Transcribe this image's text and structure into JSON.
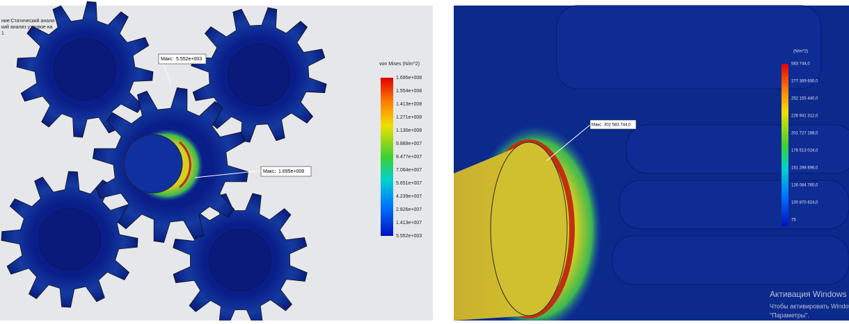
{
  "left_view": {
    "header_lines": [
      "ние:Статический анали",
      "кий анализ узловое на",
      "1"
    ],
    "legend": {
      "title": "von Mises (N/m^2)",
      "labels": [
        "1.695e+008",
        "1.554e+008",
        "1.413e+008",
        "1.271e+008",
        "1.130e+008",
        "9.889e+007",
        "8.477e+007",
        "7.064e+007",
        "5.651e+007",
        "4.239e+007",
        "2.826e+007",
        "1.413e+007",
        "5.552e+003"
      ]
    },
    "annotations": [
      {
        "label": "Макс:",
        "value": "5.552e+003"
      },
      {
        "label": "Макс:",
        "value": "1.695e+008"
      }
    ]
  },
  "right_view": {
    "legend": {
      "title": "(N/m^2)",
      "labels": [
        "583 744,0",
        "277 369 600,0",
        "252 155 440,0",
        "226 941 312,0",
        "201 727 168,0",
        "176 513 024,0",
        "151 298 896,0",
        "126 084 760,0",
        "100 870 624,0",
        "75"
      ]
    },
    "annotation": {
      "label": "Макс:",
      "value": "302 583 744,0"
    },
    "watermark": {
      "title": "Активация Windows",
      "line1": "Чтобы активировать Windows, пе",
      "line2": "\"Параметры\"."
    }
  }
}
